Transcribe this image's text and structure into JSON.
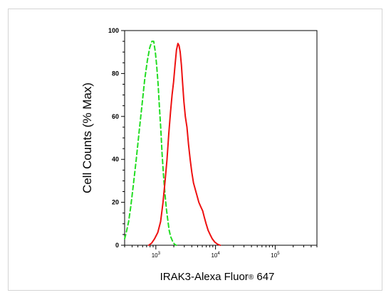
{
  "chart_data": {
    "type": "line",
    "xlabel": {
      "main": "IRAK3-Alexa Fluor",
      "mark": "®",
      "suffix": " 647"
    },
    "ylabel": "Cell Counts (% Max)",
    "x_scale": "log",
    "xlim": [
      300,
      500000
    ],
    "ylim": [
      0,
      100
    ],
    "y_ticks": [
      "0",
      "20",
      "40",
      "60",
      "80",
      "100"
    ],
    "y_tick_values": [
      0,
      20,
      40,
      60,
      80,
      100
    ],
    "x_ticks": [
      {
        "base": "10",
        "exp": "3",
        "value": 1000
      },
      {
        "base": "10",
        "exp": "4",
        "value": 10000
      },
      {
        "base": "10",
        "exp": "5",
        "value": 100000
      }
    ],
    "grid": false,
    "legend": "none",
    "series": [
      {
        "style": "dashed",
        "color": "#22dd22",
        "points": [
          [
            300,
            3
          ],
          [
            320,
            6
          ],
          [
            350,
            11
          ],
          [
            380,
            18
          ],
          [
            420,
            28
          ],
          [
            470,
            40
          ],
          [
            530,
            54
          ],
          [
            590,
            66
          ],
          [
            650,
            77
          ],
          [
            720,
            86
          ],
          [
            790,
            92
          ],
          [
            860,
            95
          ],
          [
            920,
            95
          ],
          [
            980,
            90
          ],
          [
            1030,
            84
          ],
          [
            1090,
            75
          ],
          [
            1150,
            64
          ],
          [
            1210,
            54
          ],
          [
            1270,
            43
          ],
          [
            1340,
            33
          ],
          [
            1420,
            24
          ],
          [
            1500,
            17
          ],
          [
            1580,
            12
          ],
          [
            1670,
            7
          ],
          [
            1770,
            4
          ],
          [
            1900,
            2
          ],
          [
            2050,
            0.5
          ],
          [
            2200,
            0
          ]
        ]
      },
      {
        "style": "solid",
        "color": "#ee1111",
        "points": [
          [
            760,
            0
          ],
          [
            850,
            1
          ],
          [
            950,
            3
          ],
          [
            1080,
            6
          ],
          [
            1200,
            11
          ],
          [
            1320,
            20
          ],
          [
            1430,
            30
          ],
          [
            1540,
            40
          ],
          [
            1650,
            52
          ],
          [
            1760,
            62
          ],
          [
            1870,
            70
          ],
          [
            1980,
            76
          ],
          [
            2100,
            84
          ],
          [
            2220,
            91
          ],
          [
            2340,
            94
          ],
          [
            2450,
            93
          ],
          [
            2560,
            90
          ],
          [
            2680,
            84
          ],
          [
            2800,
            76
          ],
          [
            2950,
            67
          ],
          [
            3120,
            60
          ],
          [
            3320,
            55
          ],
          [
            3530,
            47
          ],
          [
            3760,
            40
          ],
          [
            4000,
            34
          ],
          [
            4280,
            29
          ],
          [
            4580,
            26
          ],
          [
            4900,
            23
          ],
          [
            5260,
            20
          ],
          [
            5640,
            18
          ],
          [
            6100,
            16
          ],
          [
            6500,
            13
          ],
          [
            6950,
            10
          ],
          [
            7500,
            7
          ],
          [
            8100,
            5
          ],
          [
            8800,
            3
          ],
          [
            9700,
            1.5
          ],
          [
            10800,
            0.5
          ],
          [
            12000,
            0
          ]
        ]
      }
    ]
  }
}
